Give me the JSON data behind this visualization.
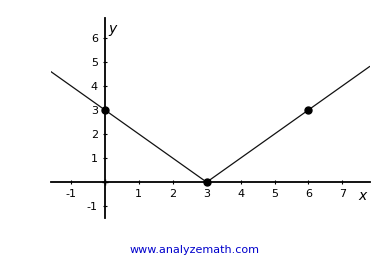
{
  "title": "",
  "xlabel": "x",
  "ylabel": "y",
  "watermark": "www.analyzemath.com",
  "watermark_color": "#0000cc",
  "xlim": [
    -1.6,
    7.8
  ],
  "ylim": [
    -1.5,
    6.8
  ],
  "xticks": [
    -1,
    1,
    2,
    3,
    4,
    5,
    6,
    7
  ],
  "yticks": [
    -1,
    1,
    2,
    3,
    4,
    5,
    6
  ],
  "special_points": [
    [
      0,
      3
    ],
    [
      3,
      0
    ],
    [
      6,
      3
    ]
  ],
  "line_color": "#111111",
  "line_width": 0.9,
  "bg_color": "#ffffff",
  "axes_color": "#000000",
  "point_size": 5,
  "axis_label_color": "#000000",
  "x_range_start": -1.6,
  "x_range_end": 7.8,
  "tick_fontsize": 8,
  "label_fontsize": 10
}
